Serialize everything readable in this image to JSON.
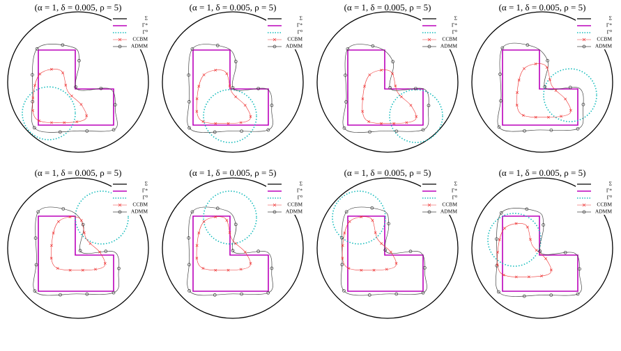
{
  "panels": [
    {
      "title": "(α = 1, δ = 0.005, ρ = 5)",
      "legend": [
        "Σ",
        "Γ*",
        "Γ⁰",
        "CCBM",
        "ADMM"
      ]
    },
    {
      "title": "(α = 1, δ = 0.005, ρ = 5)",
      "legend": [
        "Σ",
        "Γ*",
        "Γ⁰",
        "CCBM",
        "ADMM"
      ]
    },
    {
      "title": "(α = 1, δ = 0.005, ρ = 5)",
      "legend": [
        "Σ",
        "Γ*",
        "Γ⁰",
        "CCBM",
        "ADMM"
      ]
    },
    {
      "title": "(α = 1, δ = 0.005, ρ = 5)",
      "legend": [
        "Σ",
        "Γ*",
        "Γ⁰",
        "CCBM",
        "ADMM"
      ]
    },
    {
      "title": "(α = 1, δ = 0.005, ρ = 5)",
      "legend": [
        "Σ",
        "Γ*",
        "Γ⁰",
        "CCBM",
        "ADMM"
      ]
    },
    {
      "title": "(α = 1, δ = 0.005, ρ = 5)",
      "legend": [
        "Σ",
        "Γ*",
        "Γ⁰",
        "CCBM",
        "ADMM"
      ]
    },
    {
      "title": "(α = 1, δ = 0.005, ρ = 5)",
      "legend": [
        "Σ",
        "Γ*",
        "Γ⁰",
        "CCBM",
        "ADMM"
      ]
    },
    {
      "title": "(α = 1, δ = 0.005, ρ = 5)",
      "legend": [
        "Σ",
        "Γ*",
        "Γ⁰",
        "CCBM",
        "ADMM"
      ]
    }
  ]
}
